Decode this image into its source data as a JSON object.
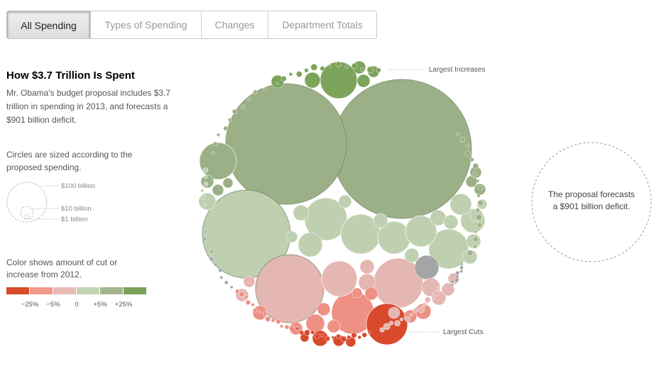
{
  "tabs": [
    {
      "label": "All Spending",
      "active": true
    },
    {
      "label": "Types of Spending",
      "active": false
    },
    {
      "label": "Changes",
      "active": false
    },
    {
      "label": "Department Totals",
      "active": false
    }
  ],
  "panel": {
    "title": "How $3.7 Trillion Is Spent",
    "description": "Mr. Obama's budget proposal includes $3.7 trillion in spending in 2013, and forecasts a $901 billion deficit.",
    "size_legend_label": "Circles are sized according to the proposed spending.",
    "size_legend_items": [
      "$100 billion",
      "$10 billion",
      "$1 billion"
    ],
    "color_legend_label": "Color shows amount of cut or increase from 2012.",
    "color_scale": {
      "colors": [
        "#d84b2a",
        "#f0998a",
        "#e7b9b5",
        "#c3d3b5",
        "#a3b58d",
        "#7aa256"
      ],
      "ticks": [
        "−25%",
        "−5%",
        "0",
        "+5%",
        "+25%"
      ]
    }
  },
  "chart": {
    "annotations": {
      "increases": "Largest Increases",
      "cuts": "Largest Cuts"
    },
    "colors": {
      "dark_green": "#7ca35a",
      "mid_green": "#9bb086",
      "light_green": "#bfd0b1",
      "pale_pink": "#e5b7b2",
      "salmon": "#ee9084",
      "red": "#d9492c",
      "gray": "#a5a5a5"
    }
  },
  "deficit": {
    "text": "The proposal forecasts a $901 billion deficit."
  }
}
